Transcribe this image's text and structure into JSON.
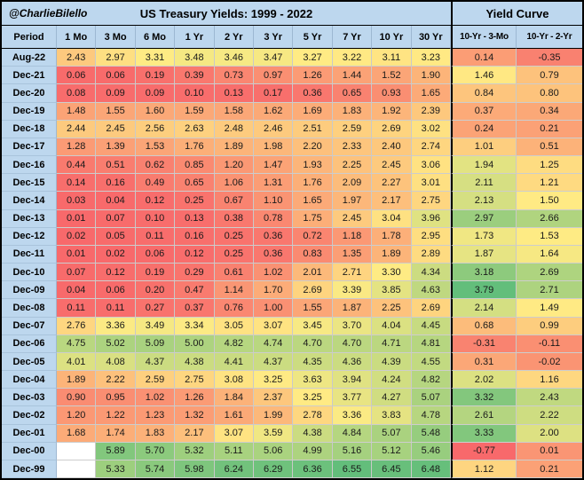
{
  "header": {
    "brand": "@CharlieBilello",
    "title": "US Treasury Yields: 1999 - 2022",
    "curve_title": "Yield Curve"
  },
  "table": {
    "period_label": "Period"
  },
  "colors": {
    "header_bg": "#bdd7ee",
    "scale_low": "#f8696b",
    "scale_mid": "#ffeb84",
    "scale_high": "#63be7b",
    "border": "#000000"
  },
  "chart_data": {
    "type": "heatmap",
    "title": "US Treasury Yields: 1999 - 2022",
    "maturity_columns": [
      "1 Mo",
      "3 Mo",
      "6 Mo",
      "1 Yr",
      "2 Yr",
      "3 Yr",
      "5 Yr",
      "7 Yr",
      "10 Yr",
      "30 Yr"
    ],
    "curve_columns": [
      "10-Yr - 3-Mo",
      "10-Yr - 2-Yr"
    ],
    "rows": [
      {
        "period": "Aug-22",
        "yields": [
          2.43,
          2.97,
          3.31,
          3.48,
          3.46,
          3.47,
          3.27,
          3.22,
          3.11,
          3.23
        ],
        "curve": [
          0.14,
          -0.35
        ]
      },
      {
        "period": "Dec-21",
        "yields": [
          0.06,
          0.06,
          0.19,
          0.39,
          0.73,
          0.97,
          1.26,
          1.44,
          1.52,
          1.9
        ],
        "curve": [
          1.46,
          0.79
        ]
      },
      {
        "period": "Dec-20",
        "yields": [
          0.08,
          0.09,
          0.09,
          0.1,
          0.13,
          0.17,
          0.36,
          0.65,
          0.93,
          1.65
        ],
        "curve": [
          0.84,
          0.8
        ]
      },
      {
        "period": "Dec-19",
        "yields": [
          1.48,
          1.55,
          1.6,
          1.59,
          1.58,
          1.62,
          1.69,
          1.83,
          1.92,
          2.39
        ],
        "curve": [
          0.37,
          0.34
        ]
      },
      {
        "period": "Dec-18",
        "yields": [
          2.44,
          2.45,
          2.56,
          2.63,
          2.48,
          2.46,
          2.51,
          2.59,
          2.69,
          3.02
        ],
        "curve": [
          0.24,
          0.21
        ]
      },
      {
        "period": "Dec-17",
        "yields": [
          1.28,
          1.39,
          1.53,
          1.76,
          1.89,
          1.98,
          2.2,
          2.33,
          2.4,
          2.74
        ],
        "curve": [
          1.01,
          0.51
        ]
      },
      {
        "period": "Dec-16",
        "yields": [
          0.44,
          0.51,
          0.62,
          0.85,
          1.2,
          1.47,
          1.93,
          2.25,
          2.45,
          3.06
        ],
        "curve": [
          1.94,
          1.25
        ]
      },
      {
        "period": "Dec-15",
        "yields": [
          0.14,
          0.16,
          0.49,
          0.65,
          1.06,
          1.31,
          1.76,
          2.09,
          2.27,
          3.01
        ],
        "curve": [
          2.11,
          1.21
        ]
      },
      {
        "period": "Dec-14",
        "yields": [
          0.03,
          0.04,
          0.12,
          0.25,
          0.67,
          1.1,
          1.65,
          1.97,
          2.17,
          2.75
        ],
        "curve": [
          2.13,
          1.5
        ]
      },
      {
        "period": "Dec-13",
        "yields": [
          0.01,
          0.07,
          0.1,
          0.13,
          0.38,
          0.78,
          1.75,
          2.45,
          3.04,
          3.96
        ],
        "curve": [
          2.97,
          2.66
        ]
      },
      {
        "period": "Dec-12",
        "yields": [
          0.02,
          0.05,
          0.11,
          0.16,
          0.25,
          0.36,
          0.72,
          1.18,
          1.78,
          2.95
        ],
        "curve": [
          1.73,
          1.53
        ]
      },
      {
        "period": "Dec-11",
        "yields": [
          0.01,
          0.02,
          0.06,
          0.12,
          0.25,
          0.36,
          0.83,
          1.35,
          1.89,
          2.89
        ],
        "curve": [
          1.87,
          1.64
        ]
      },
      {
        "period": "Dec-10",
        "yields": [
          0.07,
          0.12,
          0.19,
          0.29,
          0.61,
          1.02,
          2.01,
          2.71,
          3.3,
          4.34
        ],
        "curve": [
          3.18,
          2.69
        ]
      },
      {
        "period": "Dec-09",
        "yields": [
          0.04,
          0.06,
          0.2,
          0.47,
          1.14,
          1.7,
          2.69,
          3.39,
          3.85,
          4.63
        ],
        "curve": [
          3.79,
          2.71
        ]
      },
      {
        "period": "Dec-08",
        "yields": [
          0.11,
          0.11,
          0.27,
          0.37,
          0.76,
          1.0,
          1.55,
          1.87,
          2.25,
          2.69
        ],
        "curve": [
          2.14,
          1.49
        ]
      },
      {
        "period": "Dec-07",
        "yields": [
          2.76,
          3.36,
          3.49,
          3.34,
          3.05,
          3.07,
          3.45,
          3.7,
          4.04,
          4.45
        ],
        "curve": [
          0.68,
          0.99
        ]
      },
      {
        "period": "Dec-06",
        "yields": [
          4.75,
          5.02,
          5.09,
          5.0,
          4.82,
          4.74,
          4.7,
          4.7,
          4.71,
          4.81
        ],
        "curve": [
          -0.31,
          -0.11
        ]
      },
      {
        "period": "Dec-05",
        "yields": [
          4.01,
          4.08,
          4.37,
          4.38,
          4.41,
          4.37,
          4.35,
          4.36,
          4.39,
          4.55
        ],
        "curve": [
          0.31,
          -0.02
        ]
      },
      {
        "period": "Dec-04",
        "yields": [
          1.89,
          2.22,
          2.59,
          2.75,
          3.08,
          3.25,
          3.63,
          3.94,
          4.24,
          4.82
        ],
        "curve": [
          2.02,
          1.16
        ]
      },
      {
        "period": "Dec-03",
        "yields": [
          0.9,
          0.95,
          1.02,
          1.26,
          1.84,
          2.37,
          3.25,
          3.77,
          4.27,
          5.07
        ],
        "curve": [
          3.32,
          2.43
        ]
      },
      {
        "period": "Dec-02",
        "yields": [
          1.2,
          1.22,
          1.23,
          1.32,
          1.61,
          1.99,
          2.78,
          3.36,
          3.83,
          4.78
        ],
        "curve": [
          2.61,
          2.22
        ]
      },
      {
        "period": "Dec-01",
        "yields": [
          1.68,
          1.74,
          1.83,
          2.17,
          3.07,
          3.59,
          4.38,
          4.84,
          5.07,
          5.48
        ],
        "curve": [
          3.33,
          2.0
        ]
      },
      {
        "period": "Dec-00",
        "yields": [
          null,
          5.89,
          5.7,
          5.32,
          5.11,
          5.06,
          4.99,
          5.16,
          5.12,
          5.46
        ],
        "curve": [
          -0.77,
          0.01
        ]
      },
      {
        "period": "Dec-99",
        "yields": [
          null,
          5.33,
          5.74,
          5.98,
          6.24,
          6.29,
          6.36,
          6.55,
          6.45,
          6.48
        ],
        "curve": [
          1.12,
          0.21
        ]
      }
    ]
  }
}
